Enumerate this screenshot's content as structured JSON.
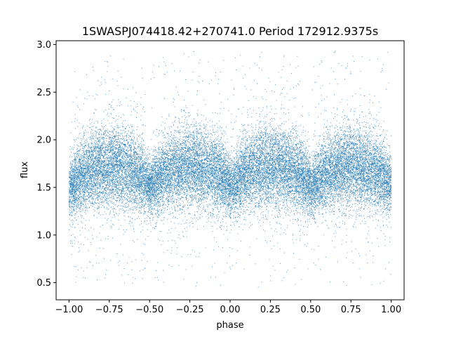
{
  "chart_data": {
    "type": "scatter",
    "title": "1SWASPJ074418.42+270741.0 Period 172912.9375s",
    "xlabel": "phase",
    "ylabel": "flux",
    "xlim": [
      -1.08,
      1.08
    ],
    "ylim": [
      0.32,
      3.04
    ],
    "xticks": [
      -1.0,
      -0.75,
      -0.5,
      -0.25,
      0.0,
      0.25,
      0.5,
      0.75,
      1.0
    ],
    "xtick_labels": [
      "−1.00",
      "−0.75",
      "−0.50",
      "−0.25",
      "0.00",
      "0.25",
      "0.50",
      "0.75",
      "1.00"
    ],
    "yticks": [
      0.5,
      1.0,
      1.5,
      2.0,
      2.5,
      3.0
    ],
    "ytick_labels": [
      "0.5",
      "1.0",
      "1.5",
      "2.0",
      "2.5",
      "3.0"
    ],
    "grid": false,
    "point_color": "#1f77b4",
    "x_range": [
      -1.0,
      1.0
    ],
    "profile": {
      "phase": [
        0.0,
        0.05,
        0.1,
        0.15,
        0.2,
        0.25,
        0.3,
        0.35,
        0.4,
        0.45,
        0.5
      ],
      "median_flux": [
        1.48,
        1.58,
        1.65,
        1.69,
        1.71,
        1.72,
        1.72,
        1.7,
        1.66,
        1.6,
        1.52
      ],
      "spread": [
        0.14,
        0.17,
        0.19,
        0.2,
        0.21,
        0.21,
        0.21,
        0.21,
        0.2,
        0.18,
        0.15
      ]
    },
    "outlier_range": [
      0.45,
      2.95
    ],
    "point_count": 26000
  }
}
